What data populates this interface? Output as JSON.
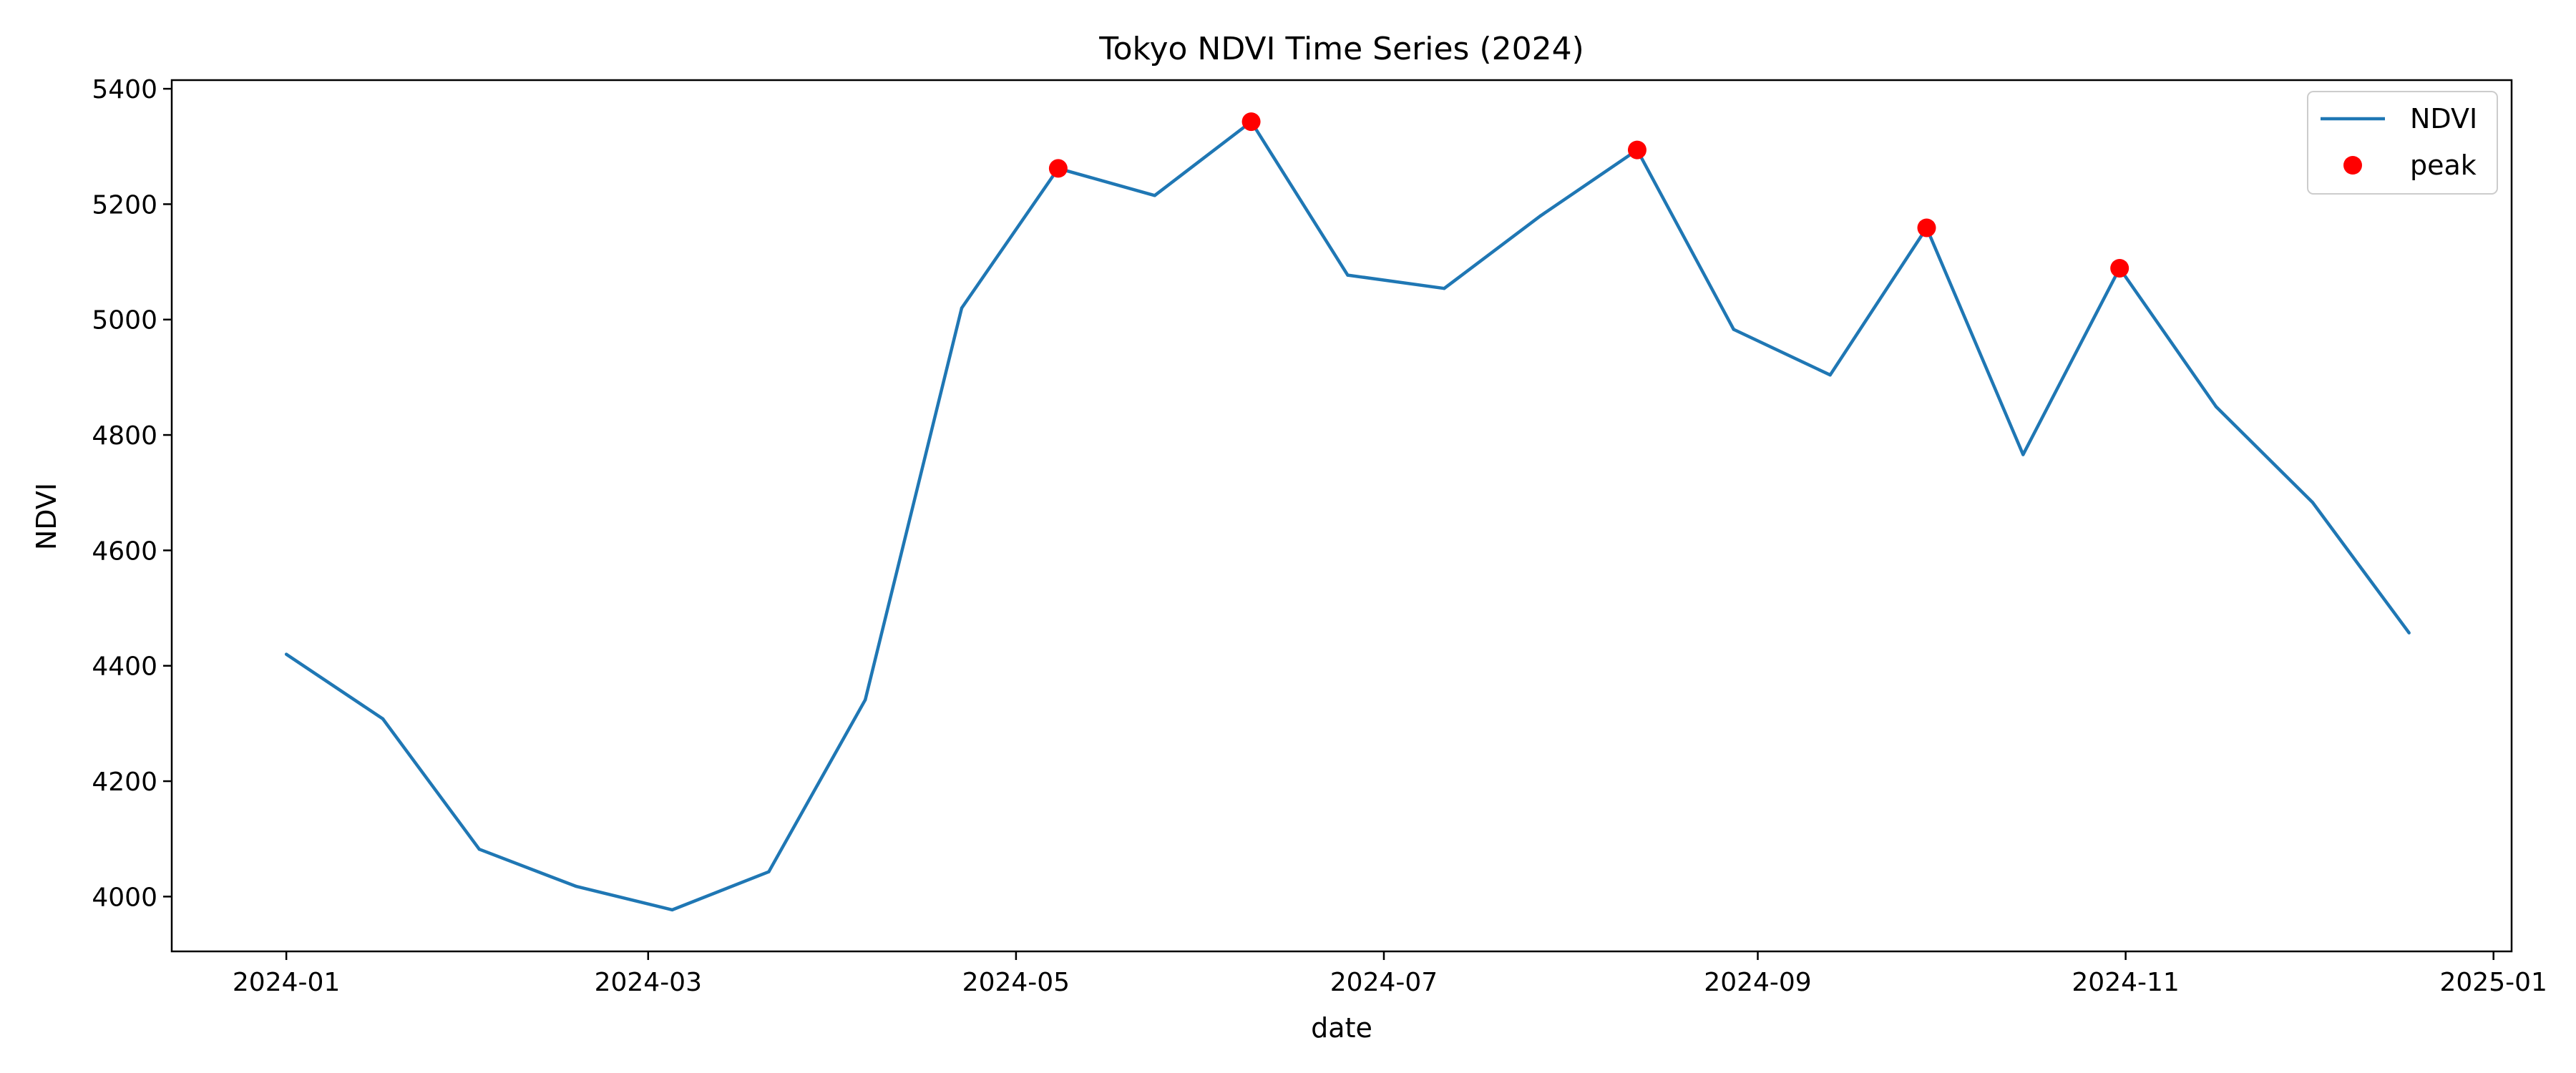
{
  "chart_data": {
    "type": "line",
    "title": "Tokyo NDVI Time Series (2024)",
    "xlabel": "date",
    "ylabel": "NDVI",
    "xlim": [
      "2023-12-13",
      "2025-01-04"
    ],
    "ylim": [
      3905,
      5415
    ],
    "x_ticks": [
      "2024-01",
      "2024-03",
      "2024-05",
      "2024-07",
      "2024-09",
      "2024-11",
      "2025-01"
    ],
    "y_ticks": [
      4000,
      4200,
      4400,
      4600,
      4800,
      5000,
      5200,
      5400
    ],
    "grid": false,
    "legend_position": "top-right",
    "series": [
      {
        "name": "NDVI",
        "color": "#1f77b4",
        "style": "line",
        "x": [
          "2024-01-01",
          "2024-01-17",
          "2024-02-02",
          "2024-02-18",
          "2024-03-05",
          "2024-03-21",
          "2024-04-06",
          "2024-04-22",
          "2024-05-08",
          "2024-05-24",
          "2024-06-09",
          "2024-06-25",
          "2024-07-11",
          "2024-07-27",
          "2024-08-12",
          "2024-08-28",
          "2024-09-13",
          "2024-09-29",
          "2024-10-15",
          "2024-10-31",
          "2024-11-16",
          "2024-12-02",
          "2024-12-18"
        ],
        "y": [
          4420,
          4308,
          4082,
          4018,
          3977,
          4043,
          4341,
          5020,
          5262,
          5215,
          5343,
          5077,
          5054,
          5180,
          5294,
          4983,
          4904,
          5159,
          4766,
          5089,
          4849,
          4683,
          4457
        ]
      },
      {
        "name": "peak",
        "color": "#ff0000",
        "style": "marker",
        "x": [
          "2024-05-08",
          "2024-06-09",
          "2024-08-12",
          "2024-09-29",
          "2024-10-31"
        ],
        "y": [
          5262,
          5343,
          5294,
          5159,
          5089
        ]
      }
    ]
  }
}
